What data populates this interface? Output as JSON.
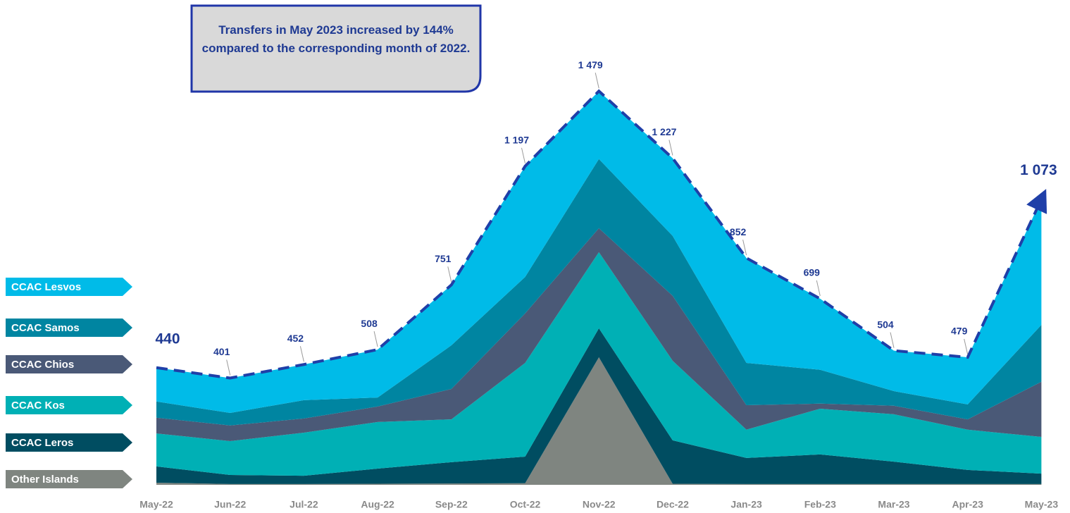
{
  "chart_data": {
    "type": "stacked-area",
    "annotation": "Transfers in May 2023 increased by 144% compared to the corresponding month of 2022.",
    "categories": [
      "May-22",
      "Jun-22",
      "Jul-22",
      "Aug-22",
      "Sep-22",
      "Oct-22",
      "Nov-22",
      "Dec-22",
      "Jan-23",
      "Feb-23",
      "Mar-23",
      "Apr-23",
      "May-23"
    ],
    "series": [
      {
        "name": "Other Islands",
        "color": "#7f8580",
        "values": [
          8,
          3,
          3,
          4,
          5,
          6,
          479,
          4,
          3,
          3,
          3,
          3,
          3
        ]
      },
      {
        "name": "CCAC Leros",
        "color": "#004d61",
        "values": [
          61,
          34,
          31,
          57,
          80,
          100,
          109,
          163,
          98,
          111,
          84,
          53,
          39
        ]
      },
      {
        "name": "CCAC Kos",
        "color": "#00b0b5",
        "values": [
          124,
          127,
          162,
          175,
          161,
          352,
          286,
          299,
          106,
          172,
          178,
          151,
          138
        ]
      },
      {
        "name": "CCAC Chios",
        "color": "#4a5977",
        "values": [
          59,
          59,
          53,
          58,
          114,
          186,
          90,
          244,
          92,
          19,
          32,
          39,
          207
        ]
      },
      {
        "name": "CCAC Samos",
        "color": "#0085a1",
        "values": [
          61,
          47,
          69,
          34,
          164,
          137,
          260,
          225,
          159,
          127,
          55,
          56,
          214
        ]
      },
      {
        "name": "CCAC Lesvos",
        "color": "#00bbe8",
        "values": [
          127,
          131,
          134,
          180,
          227,
          416,
          255,
          292,
          394,
          267,
          152,
          177,
          472
        ]
      }
    ],
    "totals": {
      "color": "#1f3fa8",
      "values": [
        440,
        401,
        452,
        508,
        751,
        1197,
        1479,
        1227,
        852,
        699,
        504,
        479,
        1073
      ],
      "value_labels": [
        "440",
        "401",
        "452",
        "508",
        "751",
        "1 197",
        "1 479",
        "1 227",
        "852",
        "699",
        "504",
        "479",
        "1 073"
      ]
    },
    "ylim": [
      0,
      1800
    ]
  }
}
